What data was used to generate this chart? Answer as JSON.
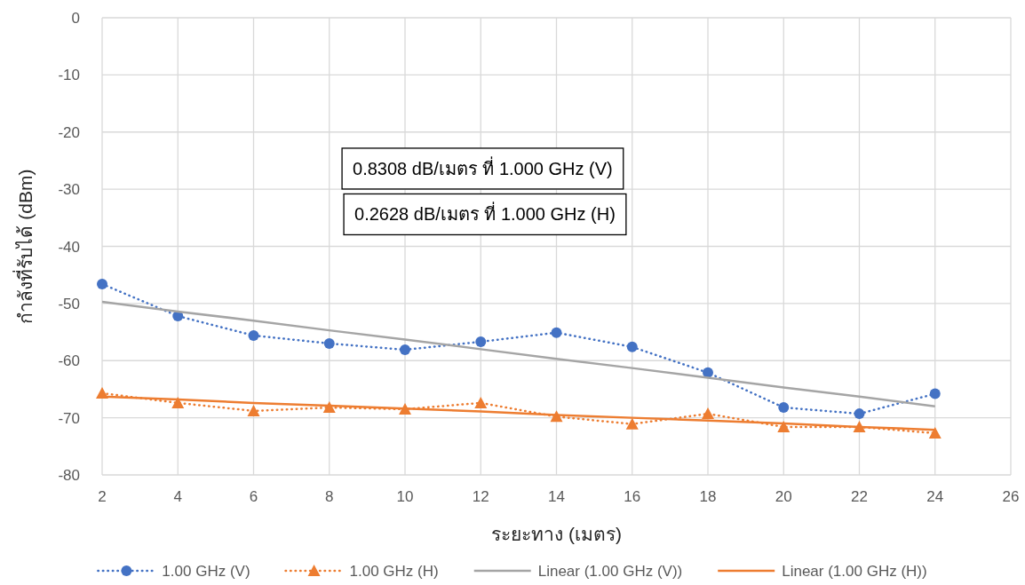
{
  "chart_data": {
    "type": "line",
    "xlabel": "ระยะทาง (เมตร)",
    "ylabel": "กำลังที่รับได้ (dBm)",
    "x": [
      2,
      4,
      6,
      8,
      10,
      12,
      14,
      16,
      18,
      20,
      22,
      24
    ],
    "series": [
      {
        "name": "1.00 GHz (V)",
        "color": "#4472c4",
        "marker": "circle",
        "line_style": "dotted",
        "values": [
          -46.6,
          -52.2,
          -55.6,
          -57.0,
          -58.1,
          -56.7,
          -55.1,
          -57.6,
          -62.1,
          -68.2,
          -69.3,
          -65.8
        ]
      },
      {
        "name": "1.00 GHz (H)",
        "color": "#ed7d31",
        "marker": "triangle",
        "line_style": "dotted",
        "values": [
          -65.7,
          -67.4,
          -68.8,
          -68.2,
          -68.5,
          -67.4,
          -69.8,
          -71.1,
          -69.3,
          -71.6,
          -71.6,
          -72.7
        ]
      },
      {
        "name": "Linear (1.00 GHz (V))",
        "color": "#a5a5a5",
        "marker": "none",
        "line_style": "solid",
        "values": [
          -49.7,
          -51.4,
          -53.0,
          -54.7,
          -56.3,
          -58.0,
          -59.7,
          -61.3,
          -63.0,
          -64.7,
          -66.3,
          -68.0
        ]
      },
      {
        "name": "Linear (1.00 GHz (H))",
        "color": "#ed7d31",
        "marker": "none",
        "line_style": "solid",
        "values": [
          -66.3,
          -66.8,
          -67.4,
          -67.9,
          -68.4,
          -68.9,
          -69.5,
          -70.0,
          -70.5,
          -71.0,
          -71.6,
          -72.1
        ]
      }
    ],
    "xlim": [
      2,
      26
    ],
    "xticks": [
      2,
      4,
      6,
      8,
      10,
      12,
      14,
      16,
      18,
      20,
      22,
      24,
      26
    ],
    "ylim": [
      -80,
      0
    ],
    "yticks": [
      -80,
      -70,
      -60,
      -50,
      -40,
      -30,
      -20,
      -10,
      0
    ],
    "grid": true,
    "legend": "bottom",
    "annotations": [
      "0.8308 dB/เมตร ที่ 1.000 GHz (V)",
      "0.2628 dB/เมตร ที่ 1.000 GHz (H)"
    ]
  }
}
